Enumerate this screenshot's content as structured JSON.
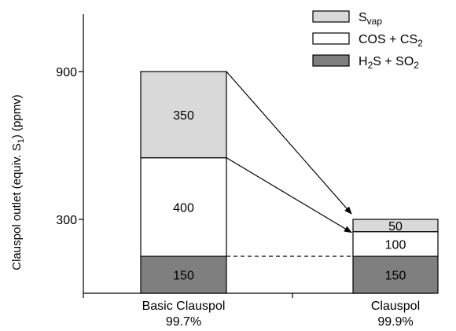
{
  "chart_data": {
    "type": "bar",
    "stacked": true,
    "ylabel": "Clauspol outlet (equiv. S",
    "ylabel_sub": "1",
    "ylabel_tail": ") (ppmv)",
    "yticks": [
      300,
      900
    ],
    "ylim": [
      0,
      1100
    ],
    "categories": [
      {
        "name": "Basic Clauspol",
        "efficiency": "99.7%"
      },
      {
        "name": "Clauspol",
        "efficiency": "99.9%"
      }
    ],
    "series": [
      {
        "key": "h2s_so2",
        "legend_main": "H",
        "legend_sub": "2",
        "legend_tail": "S + SO",
        "legend_sub2": "2",
        "color": "#7f7f7f",
        "label_color": "#ffffff",
        "values": [
          150,
          150
        ]
      },
      {
        "key": "cos_cs2",
        "legend_main": "COS + CS",
        "legend_sub": "2",
        "color": "#ffffff",
        "label_color": "#000000",
        "values": [
          400,
          100
        ]
      },
      {
        "key": "s_vap",
        "legend_main": "S",
        "legend_sub": "vap",
        "color": "#d9d9d9",
        "label_color": "#000000",
        "values": [
          350,
          50
        ]
      }
    ],
    "legend_position": "top-right",
    "grid": false
  }
}
